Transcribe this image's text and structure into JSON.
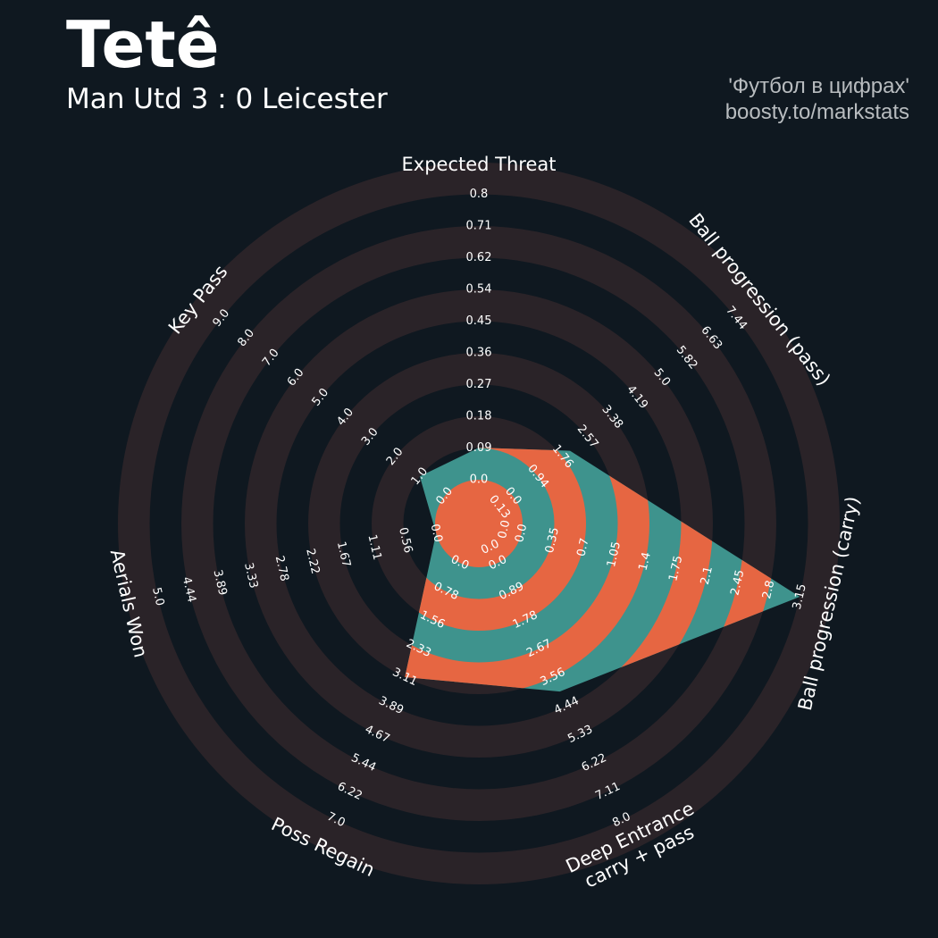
{
  "header": {
    "player": "Tetê",
    "match": "Man Utd 3 : 0 Leicester"
  },
  "credit": {
    "line1": "'Футбол в цифрах'",
    "line2": "boosty.to/markstats"
  },
  "colors": {
    "background": "#0f1820",
    "ring": "#2a2328",
    "teal": "#3e938d",
    "orange": "#e66642",
    "text": "#ffffff",
    "credit": "#b8bcbf"
  },
  "chart_data": {
    "type": "radar",
    "ring_count": 5,
    "axes": [
      {
        "label": "Expected Threat",
        "min": 0.0,
        "max": 0.8,
        "value": 0.09,
        "ticks": [
          "0.0",
          "0.09",
          "0.18",
          "0.27",
          "0.36",
          "0.45",
          "0.54",
          "0.62",
          "0.71",
          "0.8"
        ]
      },
      {
        "label": "Ball progression (pass)",
        "min": 0.0,
        "max": 7.44,
        "value": 1.9,
        "ticks": [
          "0.0",
          "0.94",
          "1.76",
          "2.57",
          "3.38",
          "4.19",
          "5.0",
          "5.82",
          "6.63",
          "7.44"
        ]
      },
      {
        "label": "Ball progression (carry)",
        "min": 0.0,
        "max": 3.15,
        "value": 3.15,
        "ticks": [
          "0.0",
          "0.35",
          "0.7",
          "1.05",
          "1.4",
          "1.75",
          "2.1",
          "2.45",
          "2.8",
          "3.15"
        ]
      },
      {
        "label": "Deep Entrance\ncarry + pass",
        "min": 0.0,
        "max": 8.0,
        "value": 4.0,
        "ticks": [
          "0.0",
          "0.89",
          "1.78",
          "2.67",
          "3.56",
          "4.44",
          "5.33",
          "6.22",
          "7.11",
          "8.0"
        ]
      },
      {
        "label": "Poss Regain",
        "min": 0.0,
        "max": 7.0,
        "value": 3.11,
        "ticks": [
          "0.0",
          "0.78",
          "1.56",
          "2.33",
          "3.11",
          "3.89",
          "4.67",
          "5.44",
          "6.22",
          "7.0"
        ]
      },
      {
        "label": "Aerials Won",
        "min": 0.0,
        "max": 5.0,
        "value": 0.0,
        "ticks": [
          "0.0",
          "0.56",
          "1.11",
          "1.67",
          "2.22",
          "2.78",
          "3.33",
          "3.89",
          "4.44",
          "5.0"
        ]
      },
      {
        "label": "Key Pass",
        "min": 0.0,
        "max": 9.0,
        "value": 1.0,
        "ticks": [
          "0.0",
          "1.0",
          "2.0",
          "3.0",
          "4.0",
          "5.0",
          "6.0",
          "7.0",
          "8.0",
          "9.0"
        ]
      }
    ],
    "inner_ticks": [
      {
        "axis": 1,
        "text": "0.13"
      },
      {
        "axis": 2,
        "text": "0.0"
      },
      {
        "axis": 3,
        "text": "0.0"
      }
    ]
  }
}
